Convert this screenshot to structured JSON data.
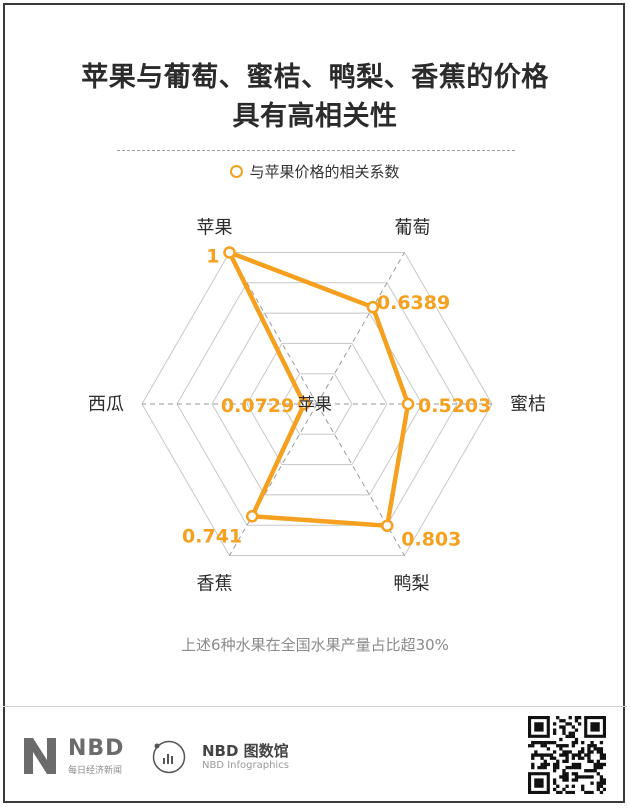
{
  "header": {
    "title_line1": "苹果与葡萄、蜜桔、鸭梨、香蕉的价格",
    "title_line2": "具有高相关性"
  },
  "legend": {
    "label": "与苹果价格的相关系数"
  },
  "note": "上述6种水果在全国水果产量占比超30%",
  "center_label": "苹果",
  "footer": {
    "nbd_brand": "NBD",
    "nbd_sub": "每日经济新闻",
    "info_brand": "NBD 图数馆",
    "info_sub": "NBD Infographics"
  },
  "colors": {
    "series": "#f5a01f",
    "grid": "#c8c8c8",
    "text": "#2b2b2b"
  },
  "chart_data": {
    "type": "radar",
    "title": "苹果与葡萄、蜜桔、鸭梨、香蕉的价格具有高相关性",
    "categories": [
      "苹果",
      "葡萄",
      "蜜桔",
      "鸭梨",
      "香蕉",
      "西瓜"
    ],
    "series": [
      {
        "name": "与苹果价格的相关系数",
        "values": [
          1,
          0.6389,
          0.5203,
          0.803,
          0.741,
          0.0729
        ]
      }
    ],
    "value_labels": [
      "1",
      "0.6389",
      "0.5203",
      "0.803",
      "0.741",
      "0.0729"
    ],
    "rlim": [
      0,
      1
    ],
    "grid_rings": 5,
    "legend_position": "top-center"
  }
}
